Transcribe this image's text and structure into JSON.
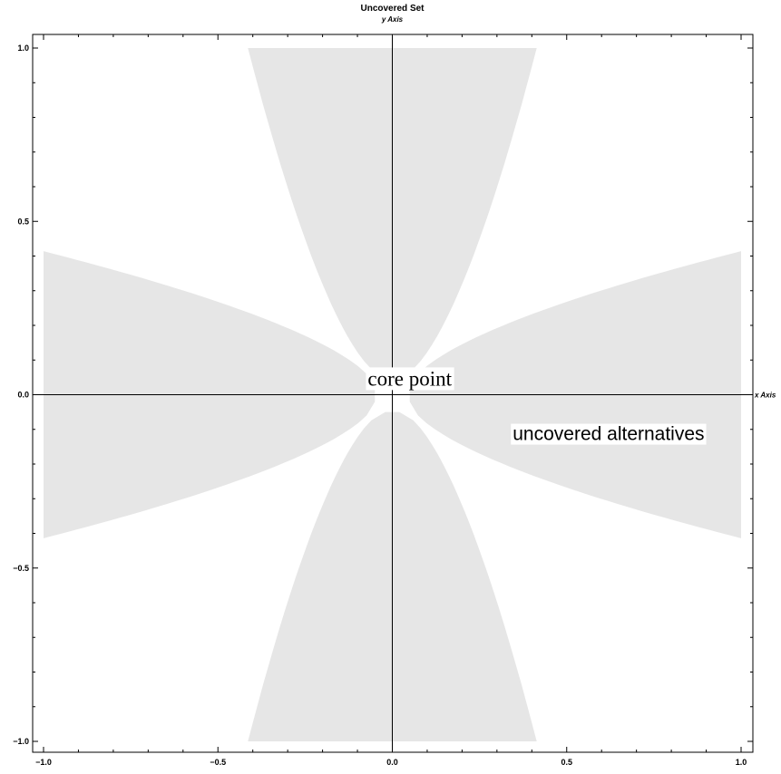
{
  "chart_data": {
    "type": "area",
    "title": "Uncovered Set",
    "xlabel": "x Axis",
    "ylabel": "y Axis",
    "xlim": [
      -1.0,
      1.0
    ],
    "ylim": [
      -1.0,
      1.0
    ],
    "xticks": [
      "-1.0",
      "-0.5",
      "0.0",
      "0.5",
      "1.0"
    ],
    "yticks": [
      "-1.0",
      "-0.5",
      "0.0",
      "0.5",
      "1.0"
    ],
    "grid": false,
    "fill_color": "#e6e6e6",
    "annotations": [
      {
        "text": "core point",
        "x": 0.05,
        "y": 0.05
      },
      {
        "text": "uncovered alternatives",
        "x": 0.62,
        "y": -0.11
      }
    ],
    "regions": [
      {
        "name": "top-petal",
        "outer_edge": 1.0,
        "half_width_at_edge": 0.414,
        "tip": 0.05
      },
      {
        "name": "bottom-petal",
        "outer_edge": 1.0,
        "half_width_at_edge": 0.414,
        "tip": 0.05
      },
      {
        "name": "left-petal",
        "outer_edge": 1.0,
        "half_width_at_edge": 0.414,
        "tip": 0.05
      },
      {
        "name": "right-petal",
        "outer_edge": 1.0,
        "half_width_at_edge": 0.414,
        "tip": 0.05
      }
    ]
  }
}
